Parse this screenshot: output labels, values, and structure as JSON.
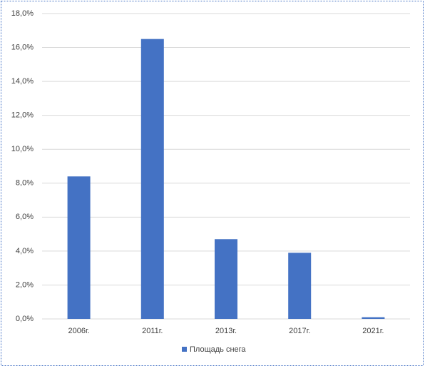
{
  "chart_data": {
    "type": "bar",
    "categories": [
      "2006г.",
      "2011г.",
      "2013г.",
      "2017г.",
      "2021г."
    ],
    "series": [
      {
        "name": "Площадь снега",
        "color": "#4472c4",
        "values": [
          8.4,
          16.5,
          4.7,
          3.9,
          0.1
        ]
      }
    ],
    "ylim": [
      0,
      18
    ],
    "yticks": [
      {
        "value": 0,
        "label": "0,0%"
      },
      {
        "value": 2,
        "label": "2,0%"
      },
      {
        "value": 4,
        "label": "4,0%"
      },
      {
        "value": 6,
        "label": "6,0%"
      },
      {
        "value": 8,
        "label": "8,0%"
      },
      {
        "value": 10,
        "label": "10,0%"
      },
      {
        "value": 12,
        "label": "12,0%"
      },
      {
        "value": 14,
        "label": "14,0%"
      },
      {
        "value": 16,
        "label": "16,0%"
      },
      {
        "value": 18,
        "label": "18,0%"
      }
    ],
    "grid": true,
    "legend": "bottom"
  }
}
